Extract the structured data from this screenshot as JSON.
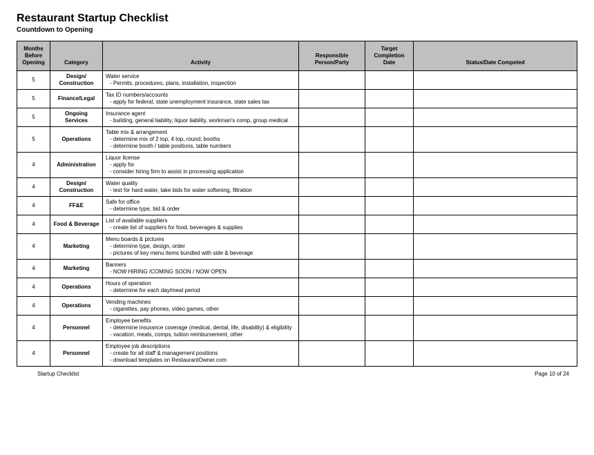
{
  "title": "Restaurant Startup Checklist",
  "subtitle": "Countdown to Opening",
  "columns": {
    "months": "Months Before Opening",
    "category": "Category",
    "activity": "Activity",
    "responsible": "Responsible Person/Party",
    "target": "Target Completion Date",
    "status": "Status/Date Competed"
  },
  "rows": [
    {
      "months": "5",
      "category": "Design/ Construction",
      "activity_head": "Water service",
      "activity_lines": [
        "- Permits, procedures, plans, installation, inspection"
      ]
    },
    {
      "months": "5",
      "category": "Finance/Legal",
      "activity_head": "Tax ID numbers/accounts",
      "activity_lines": [
        "-  apply for federal, state unemployment insurance, state sales tax"
      ]
    },
    {
      "months": "5",
      "category": "Ongoing Services",
      "activity_head": "Insurance agent",
      "activity_lines": [
        "- building, general liability, liquor liability, workman's comp, group medical"
      ]
    },
    {
      "months": "5",
      "category": "Operations",
      "activity_head": "Table mix & arrangement",
      "activity_lines": [
        "- determine mix of 2 top, 4 top, round, booths",
        "- determine booth / table positions, table numbers"
      ]
    },
    {
      "months": "4",
      "category": "Administration",
      "activity_head": "Liquor license",
      "activity_lines": [
        "- apply for",
        "- consider hiring firm to assist in processing application"
      ]
    },
    {
      "months": "4",
      "category": "Design/ Construction",
      "activity_head": "Water quality",
      "activity_lines": [
        "- test for hard water, take bids for water softening, filtration"
      ]
    },
    {
      "months": "4",
      "category": "FF&E",
      "activity_head": "Safe for office",
      "activity_lines": [
        "- determine type, bid & order"
      ]
    },
    {
      "months": "4",
      "category": "Food & Beverage",
      "activity_head": "List of available suppliers",
      "activity_lines": [
        "- create list of suppliers for food, beverages & supplies"
      ]
    },
    {
      "months": "4",
      "category": "Marketing",
      "activity_head": "Menu boards & pictures",
      "activity_lines": [
        "- determine type, design, order",
        "- pictures of key menu items bundled with side & beverage"
      ]
    },
    {
      "months": "4",
      "category": "Marketing",
      "activity_head": "Banners",
      "activity_lines": [
        "- NOW HIRING /COMING SOON / NOW OPEN"
      ]
    },
    {
      "months": "4",
      "category": "Operations",
      "activity_head": "Hours of operation",
      "activity_lines": [
        "- determine for each day/meal period"
      ]
    },
    {
      "months": "4",
      "category": "Operations",
      "activity_head": "Vending machines",
      "activity_lines": [
        "- cigarettes, pay phones, video games, other"
      ]
    },
    {
      "months": "4",
      "category": "Personnel",
      "activity_head": "Employee benefits",
      "activity_lines": [
        "- determine insurance coverage (medical, dental, life, disability) & eligibility",
        "- vacation, meals, comps, tuition reimbursement, other"
      ]
    },
    {
      "months": "4",
      "category": "Personnel",
      "activity_head": "Employee job descriptions",
      "activity_lines": [
        "- create for all staff & management positions",
        "- download templates on RestaurantOwner.com"
      ]
    }
  ],
  "footer_left": "Startup Checklist",
  "footer_right": "Page 10 of 24",
  "colors": {
    "header_bg": "#c0c0c0",
    "border": "#000000",
    "text": "#000000",
    "page_bg": "#ffffff"
  }
}
